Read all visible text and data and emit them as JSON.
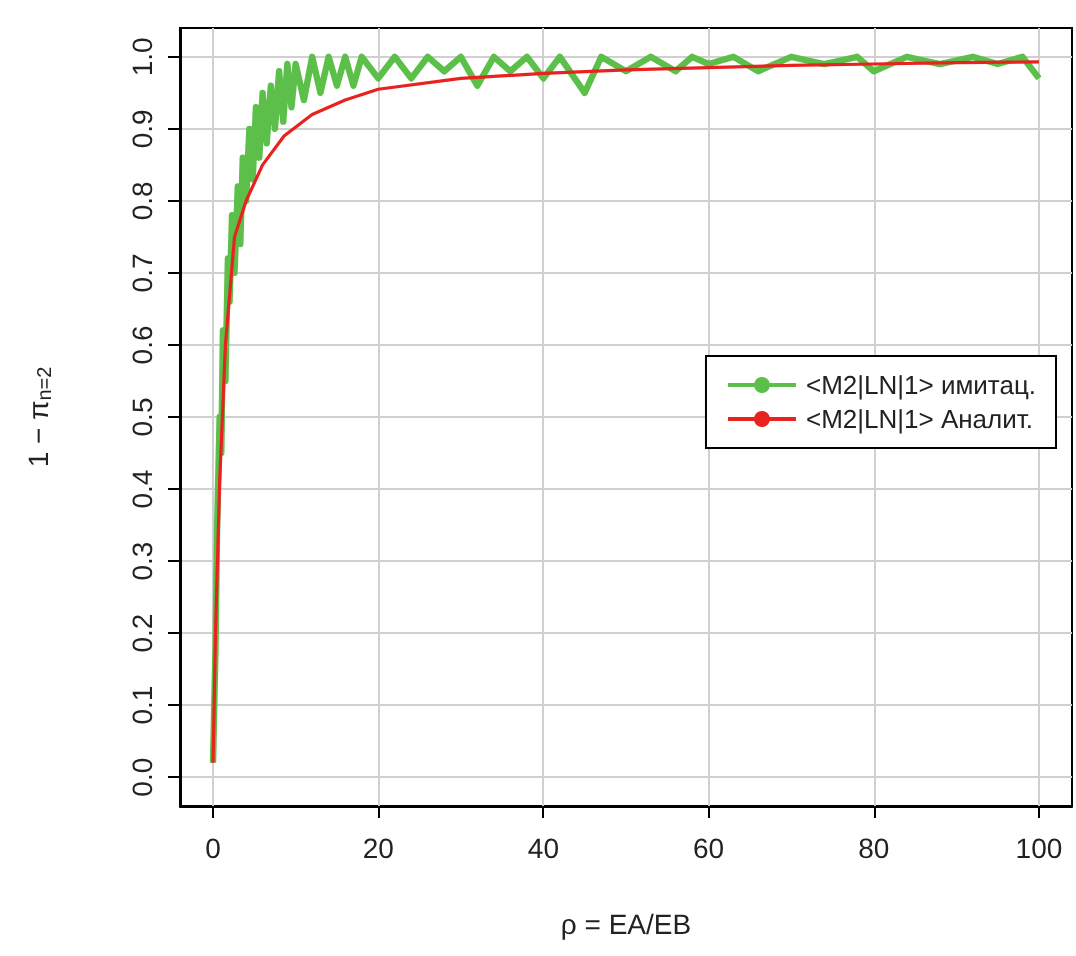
{
  "chart_data": {
    "type": "line",
    "xlabel": "ρ = EA/EB",
    "ylabel": "1 − π$_{n=2}$",
    "xlim": [
      -4,
      104
    ],
    "ylim": [
      -0.04,
      1.04
    ],
    "xticks": [
      0,
      20,
      40,
      60,
      80,
      100
    ],
    "yticks": [
      {
        "value": 0,
        "label": "0.0"
      },
      {
        "value": 0.1,
        "label": "0.1"
      },
      {
        "value": 0.2,
        "label": "0.2"
      },
      {
        "value": 0.3,
        "label": "0.3"
      },
      {
        "value": 0.4,
        "label": "0.4"
      },
      {
        "value": 0.5,
        "label": "0.5"
      },
      {
        "value": 0.6,
        "label": "0.6"
      },
      {
        "value": 0.7,
        "label": "0.7"
      },
      {
        "value": 0.8,
        "label": "0.8"
      },
      {
        "value": 0.9,
        "label": "0.9"
      },
      {
        "value": 1,
        "label": "1.0"
      }
    ],
    "grid": true,
    "legend": "right",
    "marker": "none",
    "series": [
      {
        "name": "<M2|LN|1> имитац.",
        "color": "#5cbf4a",
        "x": [
          0,
          0.3,
          0.5,
          0.8,
          1,
          1.2,
          1.5,
          1.8,
          2,
          2.3,
          2.6,
          3,
          3.3,
          3.6,
          4,
          4.4,
          4.8,
          5.2,
          5.6,
          6,
          6.5,
          7,
          7.5,
          8,
          8.5,
          9,
          9.5,
          10,
          11,
          12,
          13,
          14,
          15,
          16,
          17,
          18,
          20,
          22,
          24,
          26,
          28,
          30,
          32,
          34,
          36,
          38,
          40,
          42,
          45,
          47,
          50,
          53,
          56,
          58,
          60,
          63,
          66,
          70,
          74,
          78,
          80,
          84,
          88,
          92,
          95,
          98,
          100
        ],
        "values": [
          0.02,
          0.18,
          0.35,
          0.5,
          0.45,
          0.62,
          0.55,
          0.72,
          0.66,
          0.78,
          0.7,
          0.82,
          0.74,
          0.86,
          0.8,
          0.9,
          0.83,
          0.93,
          0.86,
          0.95,
          0.88,
          0.96,
          0.9,
          0.98,
          0.91,
          0.99,
          0.93,
          0.99,
          0.94,
          1,
          0.95,
          1,
          0.96,
          1,
          0.96,
          1,
          0.97,
          1,
          0.97,
          1,
          0.98,
          1,
          0.96,
          1,
          0.98,
          1,
          0.97,
          1,
          0.95,
          1,
          0.98,
          1,
          0.98,
          1,
          0.99,
          1,
          0.98,
          1,
          0.99,
          1,
          0.98,
          1,
          0.99,
          1,
          0.99,
          1,
          0.97
        ]
      },
      {
        "name": "<M2|LN|1> Аналит.",
        "color": "#e8231f",
        "x": [
          0,
          0.3,
          0.8,
          1.5,
          2.6,
          4,
          4.8,
          6,
          8.6,
          12,
          16,
          20,
          30,
          40,
          50,
          60,
          70,
          80,
          90,
          100
        ],
        "values": [
          0.02,
          0.2,
          0.41,
          0.6,
          0.75,
          0.8,
          0.82,
          0.85,
          0.89,
          0.92,
          0.94,
          0.955,
          0.97,
          0.977,
          0.982,
          0.985,
          0.988,
          0.99,
          0.992,
          0.993
        ]
      }
    ]
  }
}
